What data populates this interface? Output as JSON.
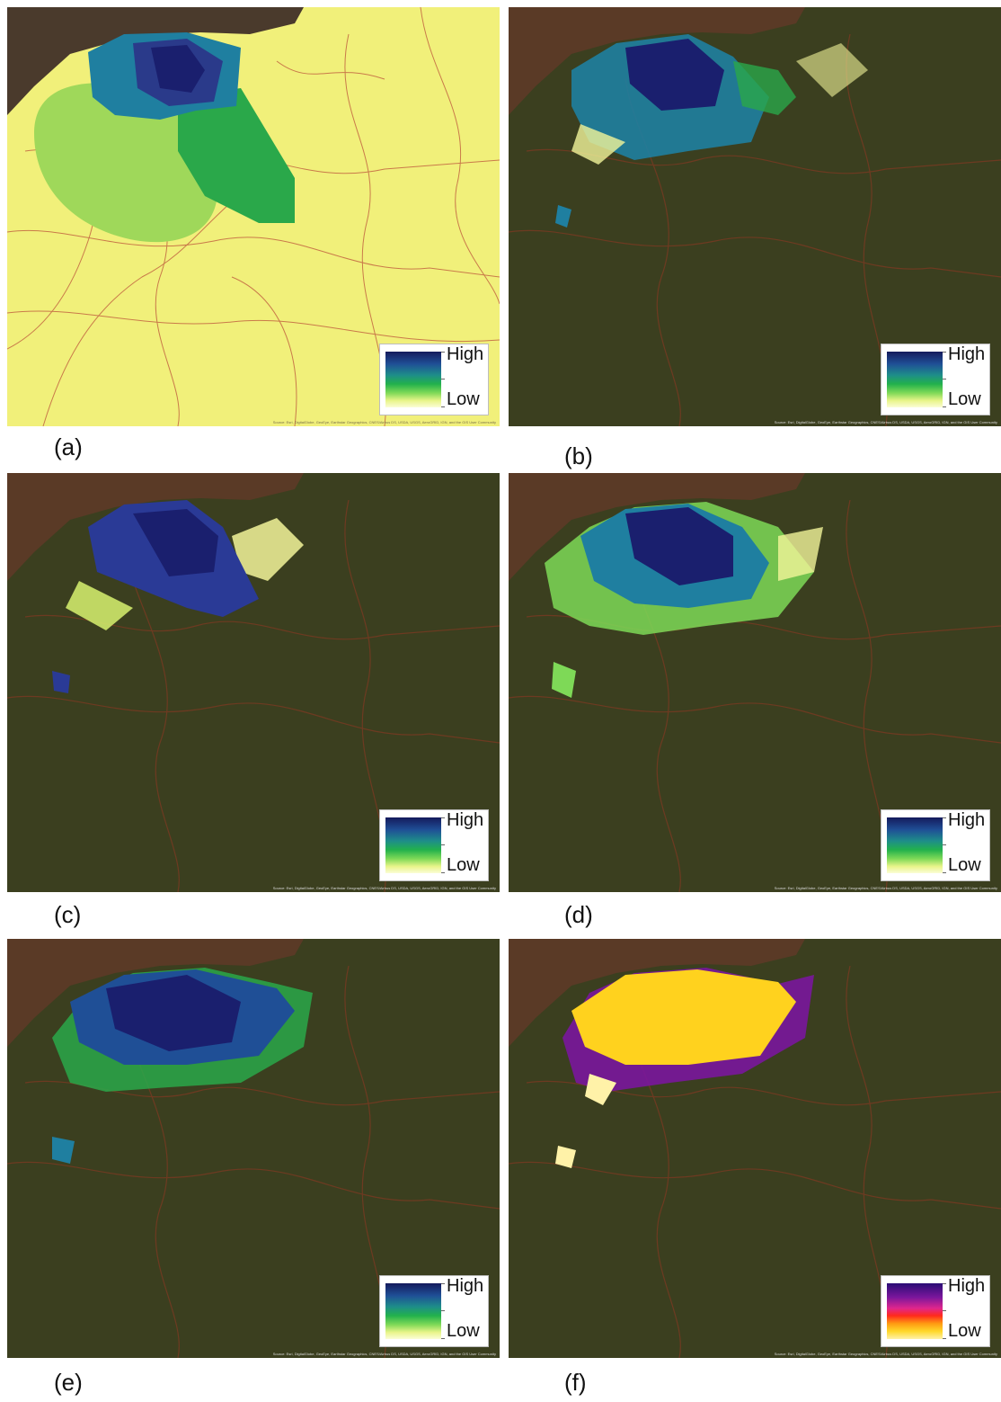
{
  "panels": [
    {
      "id": "a",
      "label": "(a)",
      "legend": {
        "high": "High",
        "low": "Low",
        "ramp": "blue-green-yellow"
      },
      "basemap": "yellow-road-map",
      "credit": "Source: Esri, DigitalGlobe, GeoEye, Earthstar Geographics, CNES/Airbus DS, USDA, USGS, AeroGRID, IGN, and the GIS User Community"
    },
    {
      "id": "b",
      "label": "(b)",
      "legend": {
        "high": "High",
        "low": "Low",
        "ramp": "blue-green-yellow"
      },
      "basemap": "satellite",
      "credit": "Source: Esri, DigitalGlobe, GeoEye, Earthstar Geographics, CNES/Airbus DS, USDA, USGS, AeroGRID, IGN, and the GIS User Community"
    },
    {
      "id": "c",
      "label": "(c)",
      "legend": {
        "high": "High",
        "low": "Low",
        "ramp": "blue-green-yellow"
      },
      "basemap": "satellite",
      "credit": "Source: Esri, DigitalGlobe, GeoEye, Earthstar Geographics, CNES/Airbus DS, USDA, USGS, AeroGRID, IGN, and the GIS User Community"
    },
    {
      "id": "d",
      "label": "(d)",
      "legend": {
        "high": "High",
        "low": "Low",
        "ramp": "blue-green-yellow"
      },
      "basemap": "satellite",
      "credit": "Source: Esri, DigitalGlobe, GeoEye, Earthstar Geographics, CNES/Airbus DS, USDA, USGS, AeroGRID, IGN, and the GIS User Community"
    },
    {
      "id": "e",
      "label": "(e)",
      "legend": {
        "high": "High",
        "low": "Low",
        "ramp": "blue-green-yellow"
      },
      "basemap": "satellite",
      "credit": "Source: Esri, DigitalGlobe, GeoEye, Earthstar Geographics, CNES/Airbus DS, USDA, USGS, AeroGRID, IGN, and the GIS User Community"
    },
    {
      "id": "f",
      "label": "(f)",
      "legend": {
        "high": "High",
        "low": "Low",
        "ramp": "purple-red-yellow"
      },
      "basemap": "satellite",
      "credit": "Source: Esri, DigitalGlobe, GeoEye, Earthstar Geographics, CNES/Airbus DS, USDA, USGS, AeroGRID, IGN, and the GIS User Community"
    }
  ],
  "colors": {
    "satellite_base": "#3b3f1f",
    "river": "#5a3a26",
    "road_on_yellow": "#c97a4a",
    "road_on_satellite": "#7a3a22",
    "yellow_base": "#f1f07a",
    "density_high": "#1a1f6e",
    "density_mid": "#1f7fa0",
    "density_green": "#2aa84a",
    "density_light": "#9fd85a",
    "density_low": "#f3f59a",
    "fire_high": "#3a137a",
    "fire_mid": "#d42a8a",
    "fire_low": "#ffd21e"
  }
}
